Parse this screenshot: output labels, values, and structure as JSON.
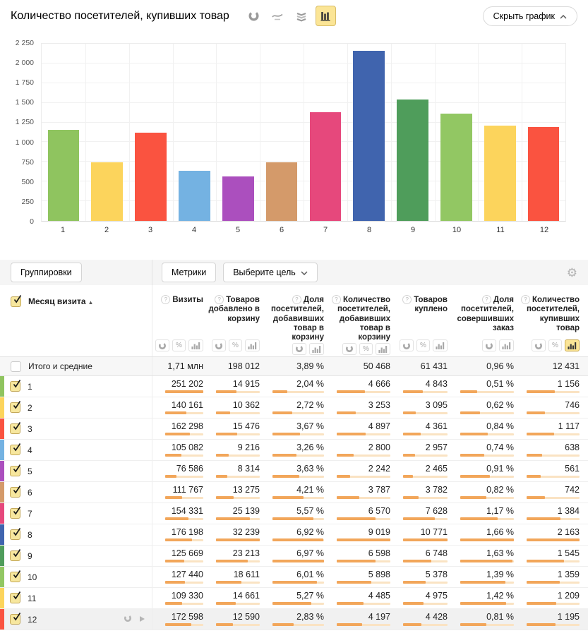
{
  "header": {
    "title": "Количество посетителей, купивших товар",
    "chart_type_icons": [
      {
        "name": "pie-chart-type",
        "selected": false
      },
      {
        "name": "line-chart-type",
        "selected": false
      },
      {
        "name": "stacked-chart-type",
        "selected": false
      },
      {
        "name": "bar-chart-type",
        "selected": true
      }
    ],
    "hide_chart_label": "Скрыть график"
  },
  "chart_data": {
    "type": "bar",
    "title": "Количество посетителей, купивших товар",
    "categories": [
      "1",
      "2",
      "3",
      "4",
      "5",
      "6",
      "7",
      "8",
      "9",
      "10",
      "11",
      "12"
    ],
    "values": [
      1156,
      746,
      1117,
      638,
      561,
      742,
      1384,
      2163,
      1545,
      1359,
      1209,
      1195
    ],
    "colors": [
      "#8fc45f",
      "#fcd45c",
      "#fa5340",
      "#74b2e2",
      "#ab4fbe",
      "#d49a6a",
      "#e6487c",
      "#4064ae",
      "#4f9d5b",
      "#92c763",
      "#fcd45c",
      "#fa5340"
    ],
    "xlabel": "",
    "ylabel": "",
    "ylim": [
      0,
      2250
    ],
    "ytick_step": 250,
    "ytick_labels": [
      "0",
      "250",
      "500",
      "750",
      "1 000",
      "1 250",
      "1 500",
      "1 750",
      "2 000",
      "2 250"
    ],
    "grid": true,
    "legend": "none"
  },
  "toolbar": {
    "groupings_label": "Группировки",
    "metrics_label": "Метрики",
    "goal_select_label": "Выберите цель"
  },
  "table": {
    "row_dimension": {
      "label": "Месяц визита",
      "sort": "asc"
    },
    "columns": [
      {
        "label": "Визиты",
        "toggles": [
          "pie",
          "percent",
          "bar"
        ],
        "selected_toggle": null
      },
      {
        "label": "Товаров добавлено в корзину",
        "toggles": [
          "pie",
          "percent",
          "bar"
        ],
        "selected_toggle": null
      },
      {
        "label": "Доля посетителей, добавивших товар в корзину",
        "toggles": [
          "pie",
          "bar"
        ],
        "selected_toggle": null
      },
      {
        "label": "Количество посетителей, добавивших товар в корзину",
        "toggles": [
          "pie",
          "percent",
          "bar"
        ],
        "selected_toggle": null
      },
      {
        "label": "Товаров куплено",
        "toggles": [
          "pie",
          "percent",
          "bar"
        ],
        "selected_toggle": null
      },
      {
        "label": "Доля посетителей, совершивших заказ",
        "toggles": [
          "pie",
          "bar"
        ],
        "selected_toggle": null
      },
      {
        "label": "Количество посетителей, купивших товар",
        "toggles": [
          "pie",
          "percent",
          "bar"
        ],
        "selected_toggle": "bar"
      }
    ],
    "totals": {
      "label": "Итого и средние",
      "checked": false,
      "values": [
        "1,71 млн",
        "198 012",
        "3,89 %",
        "50 468",
        "61 431",
        "0,96 %",
        "12 431"
      ]
    },
    "rows": [
      {
        "label": "1",
        "color": "#8fc45f",
        "checked": true,
        "hovered": false,
        "values": [
          "251 202",
          "14 915",
          "2,04 %",
          "4 666",
          "4 843",
          "0,51 %",
          "1 156"
        ]
      },
      {
        "label": "2",
        "color": "#fcd45c",
        "checked": true,
        "hovered": false,
        "values": [
          "140 161",
          "10 362",
          "2,72 %",
          "3 253",
          "3 095",
          "0,62 %",
          "746"
        ]
      },
      {
        "label": "3",
        "color": "#fa5340",
        "checked": true,
        "hovered": false,
        "values": [
          "162 298",
          "15 476",
          "3,67 %",
          "4 897",
          "4 361",
          "0,84 %",
          "1 117"
        ]
      },
      {
        "label": "4",
        "color": "#74b2e2",
        "checked": true,
        "hovered": false,
        "values": [
          "105 082",
          "9 216",
          "3,26 %",
          "2 800",
          "2 957",
          "0,74 %",
          "638"
        ]
      },
      {
        "label": "5",
        "color": "#ab4fbe",
        "checked": true,
        "hovered": false,
        "values": [
          "76 586",
          "8 314",
          "3,63 %",
          "2 242",
          "2 465",
          "0,91 %",
          "561"
        ]
      },
      {
        "label": "6",
        "color": "#d49a6a",
        "checked": true,
        "hovered": false,
        "values": [
          "111 767",
          "13 275",
          "4,21 %",
          "3 787",
          "3 782",
          "0,82 %",
          "742"
        ]
      },
      {
        "label": "7",
        "color": "#e6487c",
        "checked": true,
        "hovered": false,
        "values": [
          "154 331",
          "25 139",
          "5,57 %",
          "6 570",
          "7 628",
          "1,17 %",
          "1 384"
        ]
      },
      {
        "label": "8",
        "color": "#4064ae",
        "checked": true,
        "hovered": false,
        "values": [
          "176 198",
          "32 239",
          "6,92 %",
          "9 019",
          "10 771",
          "1,66 %",
          "2 163"
        ]
      },
      {
        "label": "9",
        "color": "#4f9d5b",
        "checked": true,
        "hovered": false,
        "values": [
          "125 669",
          "23 213",
          "6,97 %",
          "6 598",
          "6 748",
          "1,63 %",
          "1 545"
        ]
      },
      {
        "label": "10",
        "color": "#92c763",
        "checked": true,
        "hovered": false,
        "values": [
          "127 440",
          "18 611",
          "6,01 %",
          "5 898",
          "5 378",
          "1,39 %",
          "1 359"
        ]
      },
      {
        "label": "11",
        "color": "#fcd45c",
        "checked": true,
        "hovered": false,
        "values": [
          "109 330",
          "14 661",
          "5,27 %",
          "4 485",
          "4 975",
          "1,42 %",
          "1 209"
        ]
      },
      {
        "label": "12",
        "color": "#fa5340",
        "checked": true,
        "hovered": true,
        "values": [
          "172 598",
          "12 590",
          "2,83 %",
          "4 197",
          "4 428",
          "0,81 %",
          "1 195"
        ]
      }
    ]
  },
  "colors": {
    "accent_yellow": "#fbe596",
    "meter_fill": "#f2a65a",
    "meter_track": "#fae3c3",
    "totals_bg": "#f7f7f7"
  }
}
